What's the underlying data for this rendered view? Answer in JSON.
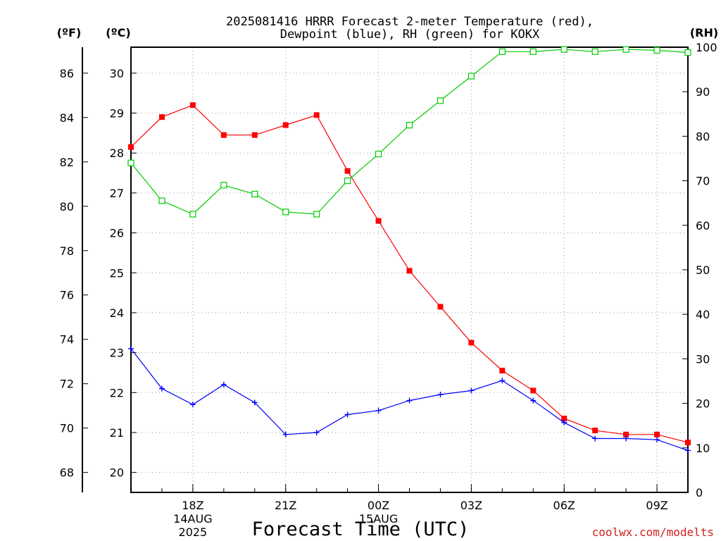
{
  "chart_data": {
    "type": "line",
    "title_lines": [
      "2025081416 HRRR Forecast 2-meter Temperature (red),",
      "Dewpoint (blue), RH (green) for KOKX"
    ],
    "xlabel": "Forecast Time (UTC)",
    "credit": "coolwx.com/modelts",
    "units": {
      "fahrenheit": "(ºF)",
      "celsius": "(ºC)",
      "rh": "(RH)"
    },
    "x_ticks": [
      {
        "hour": 2,
        "lines": [
          "18Z",
          "14AUG",
          "2025"
        ]
      },
      {
        "hour": 5,
        "lines": [
          "21Z"
        ]
      },
      {
        "hour": 8,
        "lines": [
          "00Z",
          "15AUG"
        ]
      },
      {
        "hour": 11,
        "lines": [
          "03Z"
        ]
      },
      {
        "hour": 14,
        "lines": [
          "06Z"
        ]
      },
      {
        "hour": 17,
        "lines": [
          "09Z"
        ]
      }
    ],
    "x_hours": [
      0,
      1,
      2,
      3,
      4,
      5,
      6,
      7,
      8,
      9,
      10,
      11,
      12,
      13,
      14,
      15,
      16,
      17,
      18
    ],
    "x_range": [
      0,
      18
    ],
    "celsius_ticks": [
      20,
      21,
      22,
      23,
      24,
      25,
      26,
      27,
      28,
      29,
      30
    ],
    "celsius_range": [
      19.5,
      30.65
    ],
    "fahrenheit_ticks": [
      68,
      70,
      72,
      74,
      76,
      78,
      80,
      82,
      84,
      86
    ],
    "rh_ticks": [
      0,
      10,
      20,
      30,
      40,
      50,
      60,
      70,
      80,
      90,
      100
    ],
    "rh_range": [
      0,
      100
    ],
    "grid": true,
    "series": [
      {
        "name": "Temperature",
        "color": "#ff0000",
        "marker": "filled-square",
        "axis": "celsius",
        "values": [
          28.15,
          28.9,
          29.2,
          28.45,
          28.45,
          28.7,
          28.95,
          27.55,
          26.3,
          25.05,
          24.15,
          23.25,
          22.55,
          22.05,
          21.35,
          21.05,
          20.95,
          20.95,
          20.75
        ]
      },
      {
        "name": "Dewpoint",
        "color": "#0000ff",
        "marker": "plus",
        "axis": "celsius",
        "values": [
          23.1,
          22.1,
          21.7,
          22.2,
          21.75,
          20.95,
          21.0,
          21.45,
          21.55,
          21.8,
          21.95,
          22.05,
          22.3,
          21.8,
          21.25,
          20.85,
          20.85,
          20.82,
          20.55
        ]
      },
      {
        "name": "RH",
        "color": "#00cc00",
        "marker": "open-square",
        "axis": "rh",
        "values": [
          74,
          65.5,
          62.5,
          69,
          67,
          63,
          62.5,
          70,
          76,
          82.5,
          88,
          93.5,
          99,
          99,
          99.5,
          99,
          99.5,
          99.3,
          98.8
        ]
      }
    ]
  }
}
